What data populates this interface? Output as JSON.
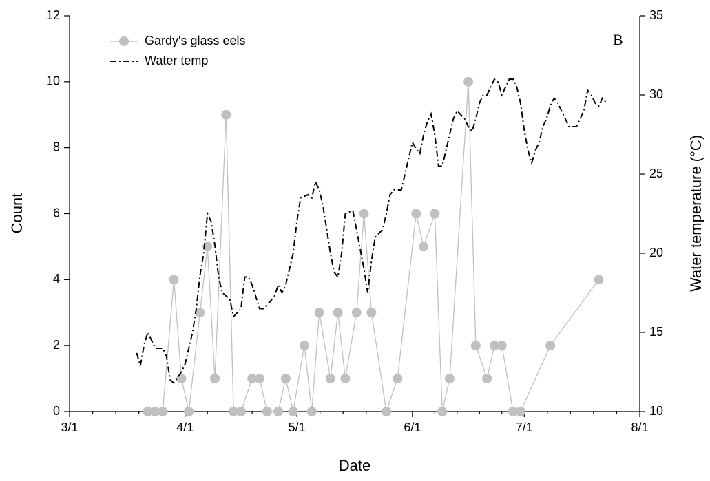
{
  "chart_data": {
    "type": "line",
    "xlabel": "Date",
    "ylabel": "Count",
    "y2label": "Water temperature (°C)",
    "annotation": "B",
    "xlim": [
      "3/1",
      "8/1"
    ],
    "xticks": [
      "3/1",
      "4/1",
      "5/1",
      "6/1",
      "7/1",
      "8/1"
    ],
    "ylim": [
      0,
      12
    ],
    "yticks": [
      0,
      2,
      4,
      6,
      8,
      10,
      12
    ],
    "y2lim": [
      10,
      35
    ],
    "y2ticks": [
      10,
      15,
      20,
      25,
      30,
      35
    ],
    "legend": "upper left",
    "series": [
      {
        "name": "Gardy's glass eels",
        "color": "#c0c0c0",
        "marker": "circle",
        "x": [
          "3/22",
          "3/24",
          "3/26",
          "3/29",
          "3/31",
          "4/2",
          "4/5",
          "4/7",
          "4/9",
          "4/12",
          "4/14",
          "4/16",
          "4/19",
          "4/21",
          "4/23",
          "4/26",
          "4/28",
          "4/30",
          "5/3",
          "5/5",
          "5/7",
          "5/10",
          "5/12",
          "5/14",
          "5/17",
          "5/19",
          "5/21",
          "5/25",
          "5/28",
          "6/2",
          "6/4",
          "6/7",
          "6/9",
          "6/11",
          "6/16",
          "6/18",
          "6/21",
          "6/23",
          "6/25",
          "6/28",
          "6/30",
          "7/8",
          "7/21"
        ],
        "values": [
          0,
          0,
          0,
          4,
          1,
          0,
          3,
          5,
          1,
          9,
          0,
          0,
          1,
          1,
          0,
          0,
          1,
          0,
          2,
          0,
          3,
          1,
          3,
          1,
          3,
          6,
          3,
          0,
          1,
          6,
          5,
          6,
          0,
          1,
          10,
          2,
          1,
          2,
          2,
          0,
          0,
          2,
          4
        ]
      },
      {
        "name": "Water temp",
        "color": "#000000",
        "axis": "y2",
        "dash": "dashdot",
        "x": [
          "3/19",
          "3/20",
          "3/21",
          "3/22",
          "3/24",
          "3/26",
          "3/27",
          "3/28",
          "3/29",
          "3/31",
          "4/1",
          "4/2",
          "4/3",
          "4/4",
          "4/5",
          "4/6",
          "4/7",
          "4/8",
          "4/9",
          "4/10",
          "4/11",
          "4/13",
          "4/14",
          "4/16",
          "4/17",
          "4/18",
          "4/19",
          "4/21",
          "4/22",
          "4/24",
          "4/25",
          "4/26",
          "4/27",
          "4/28",
          "4/30",
          "5/1",
          "5/2",
          "5/4",
          "5/5",
          "5/6",
          "5/7",
          "5/8",
          "5/9",
          "5/10",
          "5/11",
          "5/12",
          "5/13",
          "5/14",
          "5/16",
          "5/17",
          "5/19",
          "5/20",
          "5/21",
          "5/22",
          "5/24",
          "5/25",
          "5/26",
          "5/27",
          "5/28",
          "5/29",
          "5/30",
          "5/31",
          "6/1",
          "6/2",
          "6/3",
          "6/4",
          "6/5",
          "6/6",
          "6/7",
          "6/8",
          "6/9",
          "6/10",
          "6/11",
          "6/12",
          "6/13",
          "6/15",
          "6/16",
          "6/17",
          "6/18",
          "6/19",
          "6/20",
          "6/21",
          "6/22",
          "6/23",
          "6/24",
          "6/25",
          "6/27",
          "6/28",
          "6/29",
          "6/30",
          "7/1",
          "7/2",
          "7/3",
          "7/4",
          "7/5",
          "7/6",
          "7/7",
          "7/8",
          "7/9",
          "7/10",
          "7/11",
          "7/13",
          "7/15",
          "7/17",
          "7/18",
          "7/19",
          "7/20",
          "7/21",
          "7/22",
          "7/23"
        ],
        "values": [
          13.7,
          12.9,
          14.2,
          15.0,
          14.0,
          14.0,
          13.5,
          12.0,
          11.8,
          12.5,
          13.0,
          14.0,
          15.0,
          16.5,
          18.6,
          20.0,
          22.5,
          22.0,
          20.5,
          18.5,
          17.5,
          17.1,
          16.0,
          16.5,
          18.5,
          18.5,
          18.0,
          16.5,
          16.5,
          17.0,
          17.3,
          18.0,
          17.5,
          18.0,
          20.0,
          22.0,
          23.5,
          23.7,
          23.5,
          24.5,
          24.0,
          23.0,
          21.5,
          20.0,
          18.8,
          18.5,
          20.0,
          22.5,
          22.7,
          21.5,
          19.0,
          17.5,
          19.5,
          21.0,
          21.5,
          22.5,
          23.7,
          24.0,
          24.0,
          24.0,
          25.0,
          26.0,
          27.0,
          26.6,
          26.3,
          27.5,
          28.3,
          28.8,
          27.5,
          25.5,
          25.5,
          26.5,
          27.5,
          28.5,
          29.0,
          28.5,
          28.0,
          27.7,
          28.5,
          29.5,
          30.0,
          30.0,
          30.5,
          31.0,
          30.8,
          30.0,
          31.0,
          31.0,
          30.5,
          29.5,
          27.8,
          26.5,
          25.7,
          26.5,
          27.0,
          28.0,
          28.5,
          29.3,
          29.8,
          29.5,
          29.0,
          28.0,
          28.0,
          29.0,
          30.3,
          30.0,
          29.5,
          29.3,
          29.8,
          29.5
        ]
      }
    ]
  }
}
